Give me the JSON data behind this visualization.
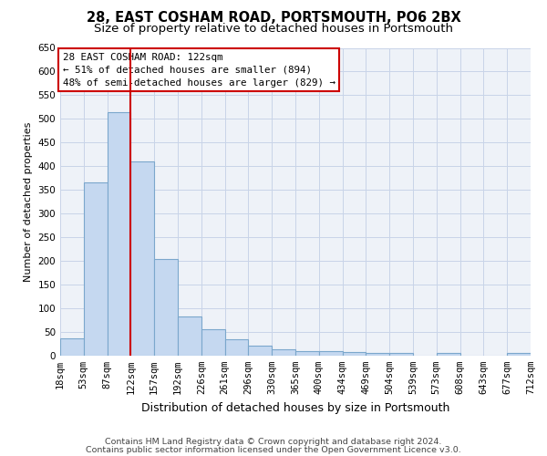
{
  "title": "28, EAST COSHAM ROAD, PORTSMOUTH, PO6 2BX",
  "subtitle": "Size of property relative to detached houses in Portsmouth",
  "xlabel": "Distribution of detached houses by size in Portsmouth",
  "ylabel": "Number of detached properties",
  "bar_values": [
    37,
    365,
    515,
    410,
    205,
    83,
    55,
    35,
    22,
    13,
    10,
    10,
    7,
    5,
    5,
    0,
    5,
    0,
    0,
    5
  ],
  "bin_labels": [
    "18sqm",
    "53sqm",
    "87sqm",
    "122sqm",
    "157sqm",
    "192sqm",
    "226sqm",
    "261sqm",
    "296sqm",
    "330sqm",
    "365sqm",
    "400sqm",
    "434sqm",
    "469sqm",
    "504sqm",
    "539sqm",
    "573sqm",
    "608sqm",
    "643sqm",
    "677sqm",
    "712sqm"
  ],
  "bar_color": "#c5d8f0",
  "bar_edgecolor": "#7ba7cc",
  "bar_linewidth": 0.8,
  "red_line_x": 3,
  "red_line_color": "#cc0000",
  "annotation_line1": "28 EAST COSHAM ROAD: 122sqm",
  "annotation_line2": "← 51% of detached houses are smaller (894)",
  "annotation_line3": "48% of semi-detached houses are larger (829) →",
  "box_edgecolor": "#cc0000",
  "ylim": [
    0,
    650
  ],
  "yticks": [
    0,
    50,
    100,
    150,
    200,
    250,
    300,
    350,
    400,
    450,
    500,
    550,
    600,
    650
  ],
  "grid_color": "#c8d4e8",
  "bg_color": "#eef2f8",
  "footer_line1": "Contains HM Land Registry data © Crown copyright and database right 2024.",
  "footer_line2": "Contains public sector information licensed under the Open Government Licence v3.0.",
  "title_fontsize": 10.5,
  "subtitle_fontsize": 9.5,
  "xlabel_fontsize": 9,
  "ylabel_fontsize": 8,
  "tick_fontsize": 7.5,
  "annotation_fontsize": 7.8,
  "footer_fontsize": 6.8
}
